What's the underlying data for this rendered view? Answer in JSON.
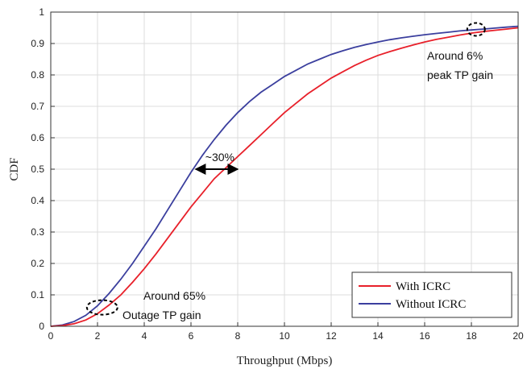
{
  "chart_data": {
    "type": "line",
    "title": "",
    "xlabel": "Throughput (Mbps)",
    "ylabel": "CDF",
    "xlim": [
      0,
      20
    ],
    "ylim": [
      0,
      1
    ],
    "xticks": [
      0,
      2,
      4,
      6,
      8,
      10,
      12,
      14,
      16,
      18,
      20
    ],
    "yticks": [
      0,
      0.1,
      0.2,
      0.3,
      0.4,
      0.5,
      0.6,
      0.7,
      0.8,
      0.9,
      1
    ],
    "ytick_labels": [
      "0",
      "0.1",
      "0.2",
      "0.3",
      "0.4",
      "0.5",
      "0.6",
      "0.7",
      "0.8",
      "0.9",
      "1"
    ],
    "grid": true,
    "legend_position": "bottom-right",
    "series": [
      {
        "name": "With ICRC",
        "color": "#e8202a",
        "x": [
          0,
          0.5,
          1,
          1.5,
          2,
          2.5,
          3,
          3.5,
          4,
          4.5,
          5,
          5.5,
          6,
          6.5,
          7,
          7.5,
          8,
          8.5,
          9,
          9.5,
          10,
          10.5,
          11,
          11.5,
          12,
          12.5,
          13,
          13.5,
          14,
          14.5,
          15,
          15.5,
          16,
          16.5,
          17,
          17.5,
          18,
          18.5,
          19,
          19.5,
          20
        ],
        "values": [
          0,
          0.002,
          0.008,
          0.02,
          0.04,
          0.068,
          0.1,
          0.14,
          0.183,
          0.23,
          0.28,
          0.33,
          0.38,
          0.425,
          0.47,
          0.505,
          0.54,
          0.575,
          0.61,
          0.645,
          0.68,
          0.71,
          0.74,
          0.765,
          0.79,
          0.81,
          0.83,
          0.847,
          0.862,
          0.874,
          0.885,
          0.895,
          0.905,
          0.913,
          0.92,
          0.927,
          0.933,
          0.938,
          0.942,
          0.946,
          0.95
        ]
      },
      {
        "name": "Without ICRC",
        "color": "#3b3f9e",
        "x": [
          0,
          0.5,
          1,
          1.5,
          2,
          2.5,
          3,
          3.5,
          4,
          4.5,
          5,
          5.5,
          6,
          6.5,
          7,
          7.5,
          8,
          8.5,
          9,
          9.5,
          10,
          10.5,
          11,
          11.5,
          12,
          12.5,
          13,
          13.5,
          14,
          14.5,
          15,
          15.5,
          16,
          16.5,
          17,
          17.5,
          18,
          18.5,
          19,
          19.5,
          20
        ],
        "values": [
          0,
          0.004,
          0.015,
          0.035,
          0.065,
          0.105,
          0.15,
          0.2,
          0.255,
          0.31,
          0.37,
          0.43,
          0.49,
          0.545,
          0.595,
          0.64,
          0.68,
          0.715,
          0.745,
          0.77,
          0.795,
          0.815,
          0.835,
          0.85,
          0.865,
          0.877,
          0.888,
          0.897,
          0.905,
          0.912,
          0.918,
          0.923,
          0.928,
          0.932,
          0.936,
          0.94,
          0.943,
          0.946,
          0.949,
          0.952,
          0.955
        ]
      }
    ],
    "annotations": {
      "gain_30": {
        "text": "~30%",
        "x1": 6.2,
        "x2": 8.0,
        "y": 0.5
      },
      "peak": {
        "line1": "Around 6%",
        "line2": "peak TP gain",
        "x": 18.2,
        "y": 0.945
      },
      "outage": {
        "line1": "Around 65%",
        "line2": "Outage TP gain",
        "x": 2.2,
        "y": 0.06
      }
    }
  }
}
